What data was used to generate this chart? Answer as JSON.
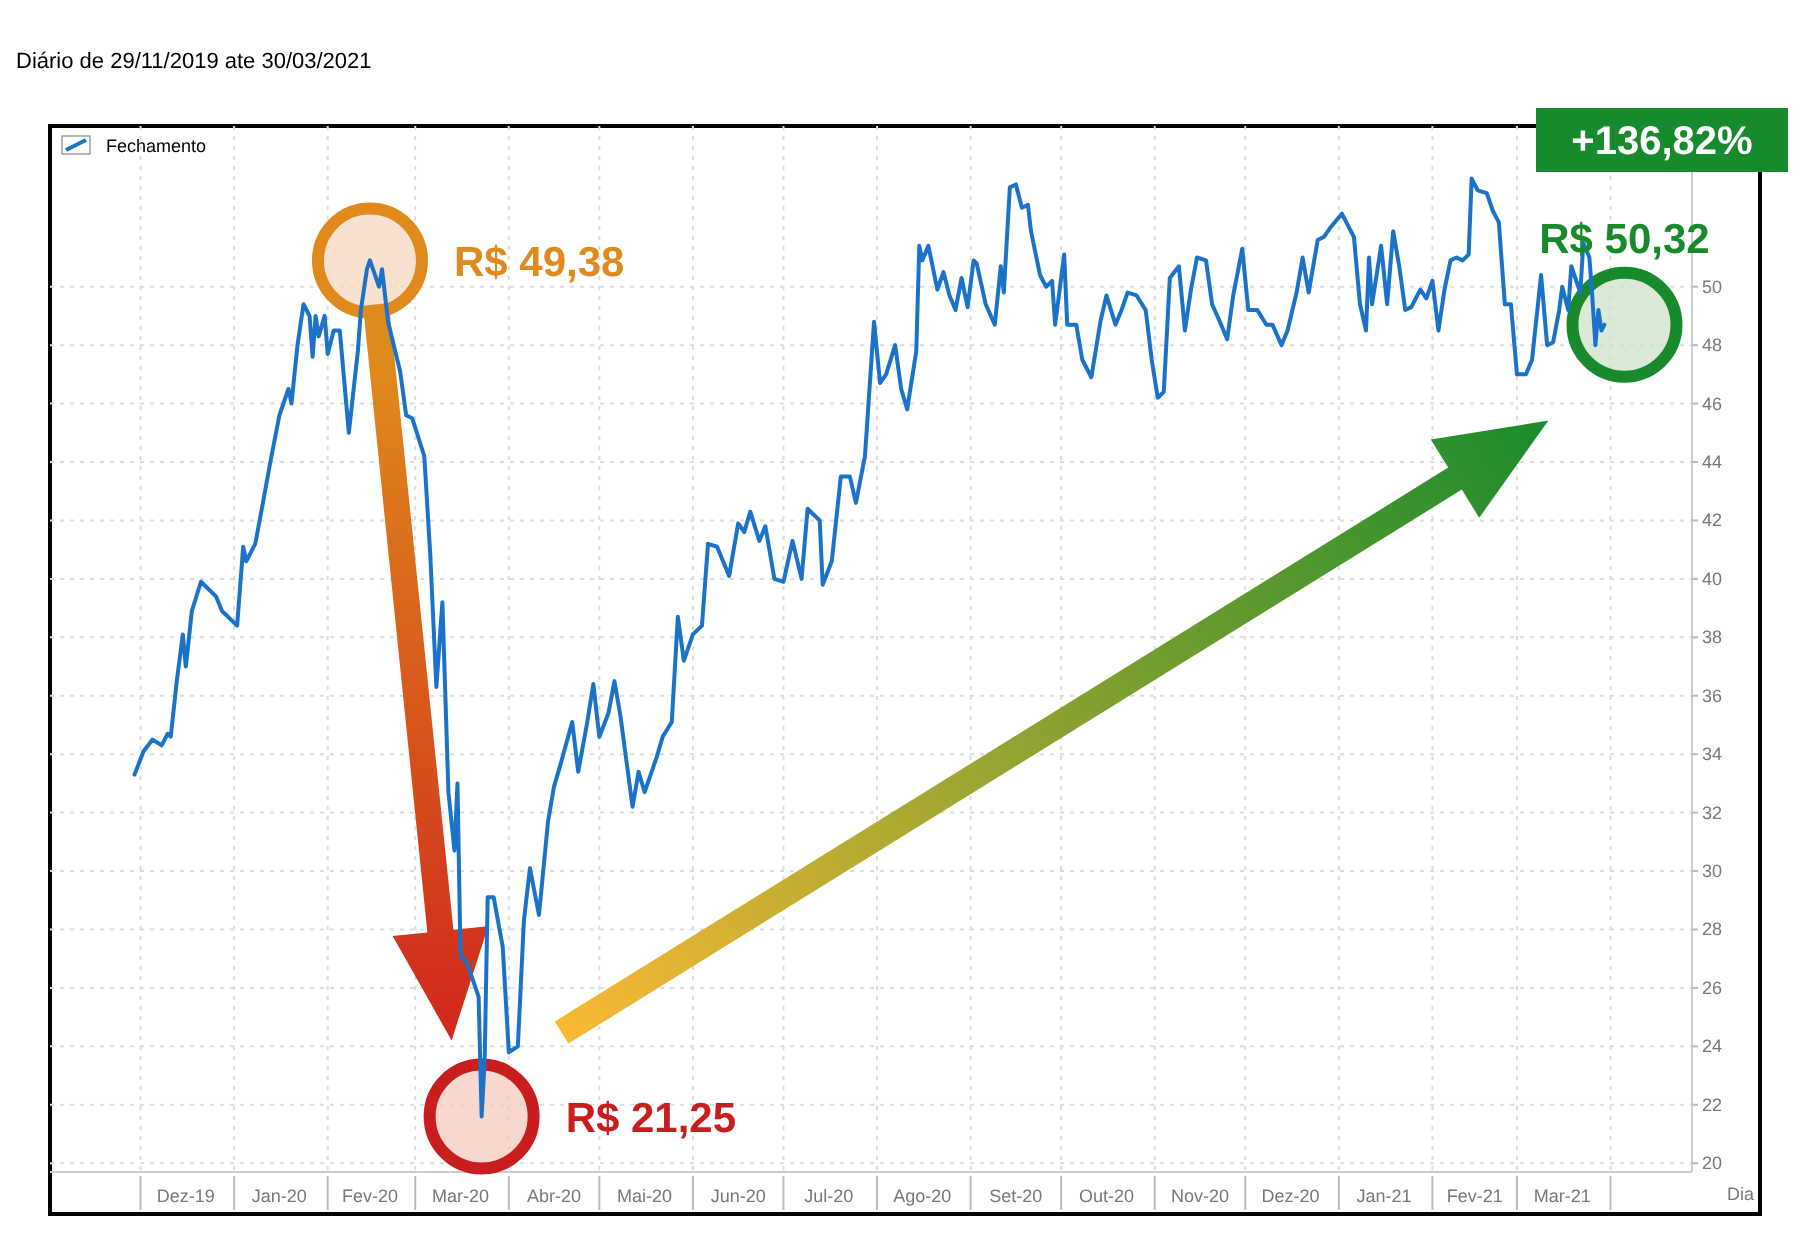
{
  "chart_data": {
    "type": "line",
    "subtitle": "Diário de 29/11/2019 ate 30/03/2021",
    "xlabel": "Dia",
    "xlim": [
      "2019-11-01",
      "2021-04-28"
    ],
    "xticks": [
      {
        "value": "2019-12-01",
        "label": null
      },
      {
        "value": "2019-12-16",
        "label": "Dez-19"
      },
      {
        "value": "2020-01-01",
        "label": null
      },
      {
        "value": "2020-01-16",
        "label": "Jan-20"
      },
      {
        "value": "2020-02-01",
        "label": null
      },
      {
        "value": "2020-02-15",
        "label": "Fev-20"
      },
      {
        "value": "2020-03-01",
        "label": null
      },
      {
        "value": "2020-03-16",
        "label": "Mar-20"
      },
      {
        "value": "2020-04-01",
        "label": null
      },
      {
        "value": "2020-04-16",
        "label": "Abr-20"
      },
      {
        "value": "2020-05-01",
        "label": null
      },
      {
        "value": "2020-05-16",
        "label": "Mai-20"
      },
      {
        "value": "2020-06-01",
        "label": null
      },
      {
        "value": "2020-06-16",
        "label": "Jun-20"
      },
      {
        "value": "2020-07-01",
        "label": null
      },
      {
        "value": "2020-07-16",
        "label": "Jul-20"
      },
      {
        "value": "2020-08-01",
        "label": null
      },
      {
        "value": "2020-08-16",
        "label": "Ago-20"
      },
      {
        "value": "2020-09-01",
        "label": null
      },
      {
        "value": "2020-09-16",
        "label": "Set-20"
      },
      {
        "value": "2020-10-01",
        "label": null
      },
      {
        "value": "2020-10-16",
        "label": "Out-20"
      },
      {
        "value": "2020-11-01",
        "label": null
      },
      {
        "value": "2020-11-16",
        "label": "Nov-20"
      },
      {
        "value": "2020-12-01",
        "label": null
      },
      {
        "value": "2020-12-16",
        "label": "Dez-20"
      },
      {
        "value": "2021-01-01",
        "label": null
      },
      {
        "value": "2021-01-16",
        "label": "Jan-21"
      },
      {
        "value": "2021-02-01",
        "label": null
      },
      {
        "value": "2021-02-15",
        "label": "Fev-21"
      },
      {
        "value": "2021-03-01",
        "label": null
      },
      {
        "value": "2021-03-16",
        "label": "Mar-21"
      },
      {
        "value": "2021-04-01",
        "label": null
      }
    ],
    "ylim": [
      19.7,
      55.5
    ],
    "yticks": [
      20,
      22,
      24,
      26,
      28,
      30,
      32,
      34,
      36,
      38,
      40,
      42,
      44,
      46,
      48,
      50
    ],
    "grid": true,
    "legend": "top left",
    "series": [
      {
        "name": "Fechamento",
        "color": "#1a73c8",
        "x": [
          "2019-11-29",
          "2019-12-02",
          "2019-12-05",
          "2019-12-08",
          "2019-12-10",
          "2019-12-11",
          "2019-12-13",
          "2019-12-15",
          "2019-12-16",
          "2019-12-18",
          "2019-12-21",
          "2019-12-26",
          "2019-12-28",
          "2020-01-02",
          "2020-01-04",
          "2020-01-05",
          "2020-01-08",
          "2020-01-10",
          "2020-01-13",
          "2020-01-16",
          "2020-01-19",
          "2020-01-20",
          "2020-01-22",
          "2020-01-24",
          "2020-01-26",
          "2020-01-27",
          "2020-01-28",
          "2020-01-29",
          "2020-01-31",
          "2020-02-01",
          "2020-02-03",
          "2020-02-05",
          "2020-02-08",
          "2020-02-11",
          "2020-02-12",
          "2020-02-14",
          "2020-02-15",
          "2020-02-18",
          "2020-02-19",
          "2020-02-21",
          "2020-02-25",
          "2020-02-27",
          "2020-02-29",
          "2020-03-04",
          "2020-03-06",
          "2020-03-08",
          "2020-03-10",
          "2020-03-12",
          "2020-03-14",
          "2020-03-15",
          "2020-03-16",
          "2020-03-18",
          "2020-03-22",
          "2020-03-23",
          "2020-03-24",
          "2020-03-25",
          "2020-03-27",
          "2020-03-30",
          "2020-04-01",
          "2020-04-04",
          "2020-04-06",
          "2020-04-08",
          "2020-04-11",
          "2020-04-14",
          "2020-04-16",
          "2020-04-18",
          "2020-04-22",
          "2020-04-24",
          "2020-04-27",
          "2020-04-29",
          "2020-05-01",
          "2020-05-04",
          "2020-05-06",
          "2020-05-08",
          "2020-05-12",
          "2020-05-14",
          "2020-05-16",
          "2020-05-20",
          "2020-05-22",
          "2020-05-25",
          "2020-05-27",
          "2020-05-29",
          "2020-06-01",
          "2020-06-04",
          "2020-06-06",
          "2020-06-09",
          "2020-06-13",
          "2020-06-16",
          "2020-06-18",
          "2020-06-20",
          "2020-06-23",
          "2020-06-25",
          "2020-06-28",
          "2020-07-01",
          "2020-07-04",
          "2020-07-07",
          "2020-07-09",
          "2020-07-13",
          "2020-07-14",
          "2020-07-17",
          "2020-07-20",
          "2020-07-23",
          "2020-07-25",
          "2020-07-28",
          "2020-07-31",
          "2020-08-02",
          "2020-08-04",
          "2020-08-07",
          "2020-08-09",
          "2020-08-11",
          "2020-08-14",
          "2020-08-15",
          "2020-08-16",
          "2020-08-18",
          "2020-08-21",
          "2020-08-23",
          "2020-08-25",
          "2020-08-27",
          "2020-08-29",
          "2020-08-31",
          "2020-09-02",
          "2020-09-03",
          "2020-09-06",
          "2020-09-09",
          "2020-09-11",
          "2020-09-12",
          "2020-09-14",
          "2020-09-16",
          "2020-09-18",
          "2020-09-20",
          "2020-09-21",
          "2020-09-24",
          "2020-09-26",
          "2020-09-28",
          "2020-09-29",
          "2020-10-02",
          "2020-10-03",
          "2020-10-06",
          "2020-10-08",
          "2020-10-11",
          "2020-10-14",
          "2020-10-16",
          "2020-10-19",
          "2020-10-21",
          "2020-10-23",
          "2020-10-26",
          "2020-10-29",
          "2020-10-31",
          "2020-11-02",
          "2020-11-04",
          "2020-11-06",
          "2020-11-09",
          "2020-11-11",
          "2020-11-13",
          "2020-11-15",
          "2020-11-18",
          "2020-11-20",
          "2020-11-23",
          "2020-11-25",
          "2020-11-27",
          "2020-11-30",
          "2020-12-02",
          "2020-12-05",
          "2020-12-08",
          "2020-12-10",
          "2020-12-13",
          "2020-12-15",
          "2020-12-18",
          "2020-12-20",
          "2020-12-22",
          "2020-12-25",
          "2020-12-27",
          "2020-12-29",
          "2021-01-02",
          "2021-01-04",
          "2021-01-06",
          "2021-01-08",
          "2021-01-10",
          "2021-01-11",
          "2021-01-12",
          "2021-01-15",
          "2021-01-17",
          "2021-01-19",
          "2021-01-21",
          "2021-01-23",
          "2021-01-25",
          "2021-01-28",
          "2021-01-30",
          "2021-02-01",
          "2021-02-03",
          "2021-02-05",
          "2021-02-07",
          "2021-02-09",
          "2021-02-11",
          "2021-02-13",
          "2021-02-14",
          "2021-02-16",
          "2021-02-19",
          "2021-02-21",
          "2021-02-23",
          "2021-02-25",
          "2021-02-27",
          "2021-03-01",
          "2021-03-04",
          "2021-03-06",
          "2021-03-09",
          "2021-03-11",
          "2021-03-13",
          "2021-03-15",
          "2021-03-16",
          "2021-03-18",
          "2021-03-19",
          "2021-03-22",
          "2021-03-23",
          "2021-03-25",
          "2021-03-26",
          "2021-03-27",
          "2021-03-28",
          "2021-03-29",
          "2021-03-30"
        ],
        "values": [
          33.3,
          34.1,
          34.5,
          34.3,
          34.7,
          34.6,
          36.5,
          38.1,
          37.0,
          38.9,
          39.9,
          39.4,
          38.9,
          38.4,
          41.1,
          40.6,
          41.2,
          42.3,
          44.0,
          45.6,
          46.5,
          46.0,
          48.0,
          49.4,
          49.0,
          47.6,
          49.0,
          48.3,
          49.0,
          47.7,
          48.5,
          48.5,
          45.0,
          47.8,
          49.2,
          50.6,
          50.9,
          50.0,
          50.6,
          48.8,
          47.1,
          45.6,
          45.5,
          44.2,
          40.8,
          36.3,
          39.2,
          32.7,
          30.7,
          33.0,
          27.1,
          26.9,
          25.7,
          21.6,
          23.5,
          29.1,
          29.1,
          27.4,
          23.8,
          24.0,
          28.3,
          30.1,
          28.5,
          31.7,
          32.9,
          33.6,
          35.1,
          33.4,
          35.1,
          36.4,
          34.6,
          35.4,
          36.5,
          35.3,
          32.2,
          33.4,
          32.7,
          33.9,
          34.6,
          35.1,
          38.7,
          37.2,
          38.1,
          38.4,
          41.2,
          41.1,
          40.1,
          41.9,
          41.6,
          42.3,
          41.3,
          41.8,
          40.0,
          39.9,
          41.3,
          40.0,
          42.4,
          42.0,
          39.8,
          40.6,
          43.5,
          43.5,
          42.6,
          44.2,
          48.8,
          46.7,
          47.0,
          48.0,
          46.5,
          45.8,
          47.8,
          51.4,
          50.9,
          51.4,
          49.9,
          50.5,
          49.7,
          49.2,
          50.3,
          49.3,
          50.9,
          50.8,
          49.4,
          48.7,
          50.7,
          49.8,
          53.4,
          53.5,
          52.7,
          52.8,
          51.9,
          50.4,
          50.0,
          50.2,
          48.7,
          51.1,
          48.7,
          48.7,
          47.5,
          46.9,
          48.8,
          49.7,
          48.7,
          49.2,
          49.8,
          49.7,
          49.2,
          47.5,
          46.2,
          46.4,
          50.3,
          50.7,
          48.5,
          49.9,
          51.0,
          50.9,
          49.4,
          48.7,
          48.2,
          49.7,
          51.3,
          49.2,
          49.2,
          48.7,
          48.7,
          48.0,
          48.5,
          49.8,
          51.0,
          49.8,
          51.6,
          51.7,
          52.0,
          52.5,
          52.1,
          51.7,
          49.4,
          48.5,
          51.0,
          49.4,
          51.4,
          49.4,
          51.9,
          50.7,
          49.2,
          49.3,
          49.9,
          49.6,
          50.2,
          48.5,
          49.9,
          50.9,
          51.0,
          50.9,
          51.1,
          53.7,
          53.3,
          53.2,
          52.6,
          52.2,
          49.4,
          49.4,
          47.0,
          47.0,
          47.5,
          50.4,
          48.0,
          48.1,
          49.2,
          50.0,
          49.2,
          50.7,
          49.8,
          51.5,
          51.0,
          49.6,
          48.0,
          49.2,
          48.5,
          48.7
        ]
      }
    ],
    "annotations": [
      "R$ 49,38",
      "R$ 21,25",
      "R$ 50,32",
      "+136,82%"
    ]
  }
}
